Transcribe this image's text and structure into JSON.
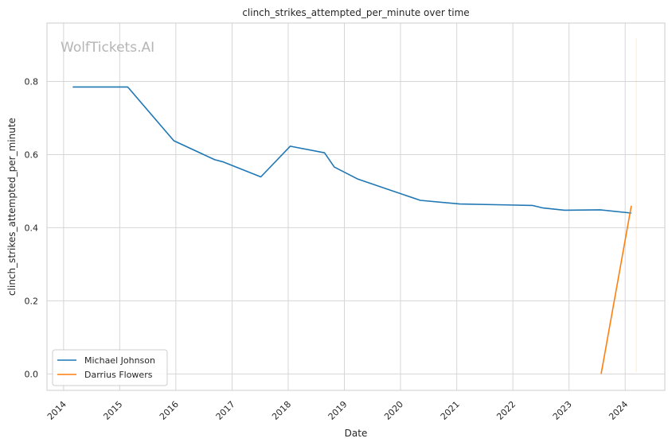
{
  "chart_data": {
    "type": "line",
    "title": "clinch_strikes_attempted_per_minute over time",
    "xlabel": "Date",
    "ylabel": "clinch_strikes_attempted_per_minute",
    "watermark": "WolfTickets.AI",
    "x_ticks": [
      "2014",
      "2015",
      "2016",
      "2017",
      "2018",
      "2019",
      "2020",
      "2021",
      "2022",
      "2023",
      "2024"
    ],
    "y_ticks": [
      "0.0",
      "0.2",
      "0.4",
      "0.6",
      "0.8"
    ],
    "xlim": [
      "2013-09-15",
      "2024-09-15"
    ],
    "ylim": [
      -0.045,
      0.96
    ],
    "grid": true,
    "legend_position": "lower-left",
    "series": [
      {
        "name": "Michael Johnson",
        "color": "#1f77b4",
        "points": [
          {
            "x": "2014-03-01",
            "y": 0.785
          },
          {
            "x": "2015-02-22",
            "y": 0.785
          },
          {
            "x": "2015-12-19",
            "y": 0.638
          },
          {
            "x": "2016-09-10",
            "y": 0.586
          },
          {
            "x": "2016-11-05",
            "y": 0.58
          },
          {
            "x": "2017-07-07",
            "y": 0.539
          },
          {
            "x": "2018-01-14",
            "y": 0.623
          },
          {
            "x": "2018-08-25",
            "y": 0.605
          },
          {
            "x": "2018-10-27",
            "y": 0.566
          },
          {
            "x": "2019-03-30",
            "y": 0.533
          },
          {
            "x": "2019-10-12",
            "y": 0.505
          },
          {
            "x": "2020-05-09",
            "y": 0.475
          },
          {
            "x": "2021-01-20",
            "y": 0.465
          },
          {
            "x": "2022-05-07",
            "y": 0.461
          },
          {
            "x": "2022-07-16",
            "y": 0.454
          },
          {
            "x": "2022-12-03",
            "y": 0.448
          },
          {
            "x": "2023-07-22",
            "y": 0.449
          },
          {
            "x": "2024-02-10",
            "y": 0.44
          }
        ]
      },
      {
        "name": "Darrius Flowers",
        "color": "#ff7f0e",
        "points": [
          {
            "x": "2023-07-29",
            "y": 0.0
          },
          {
            "x": "2024-02-10",
            "y": 0.46
          }
        ]
      }
    ]
  }
}
